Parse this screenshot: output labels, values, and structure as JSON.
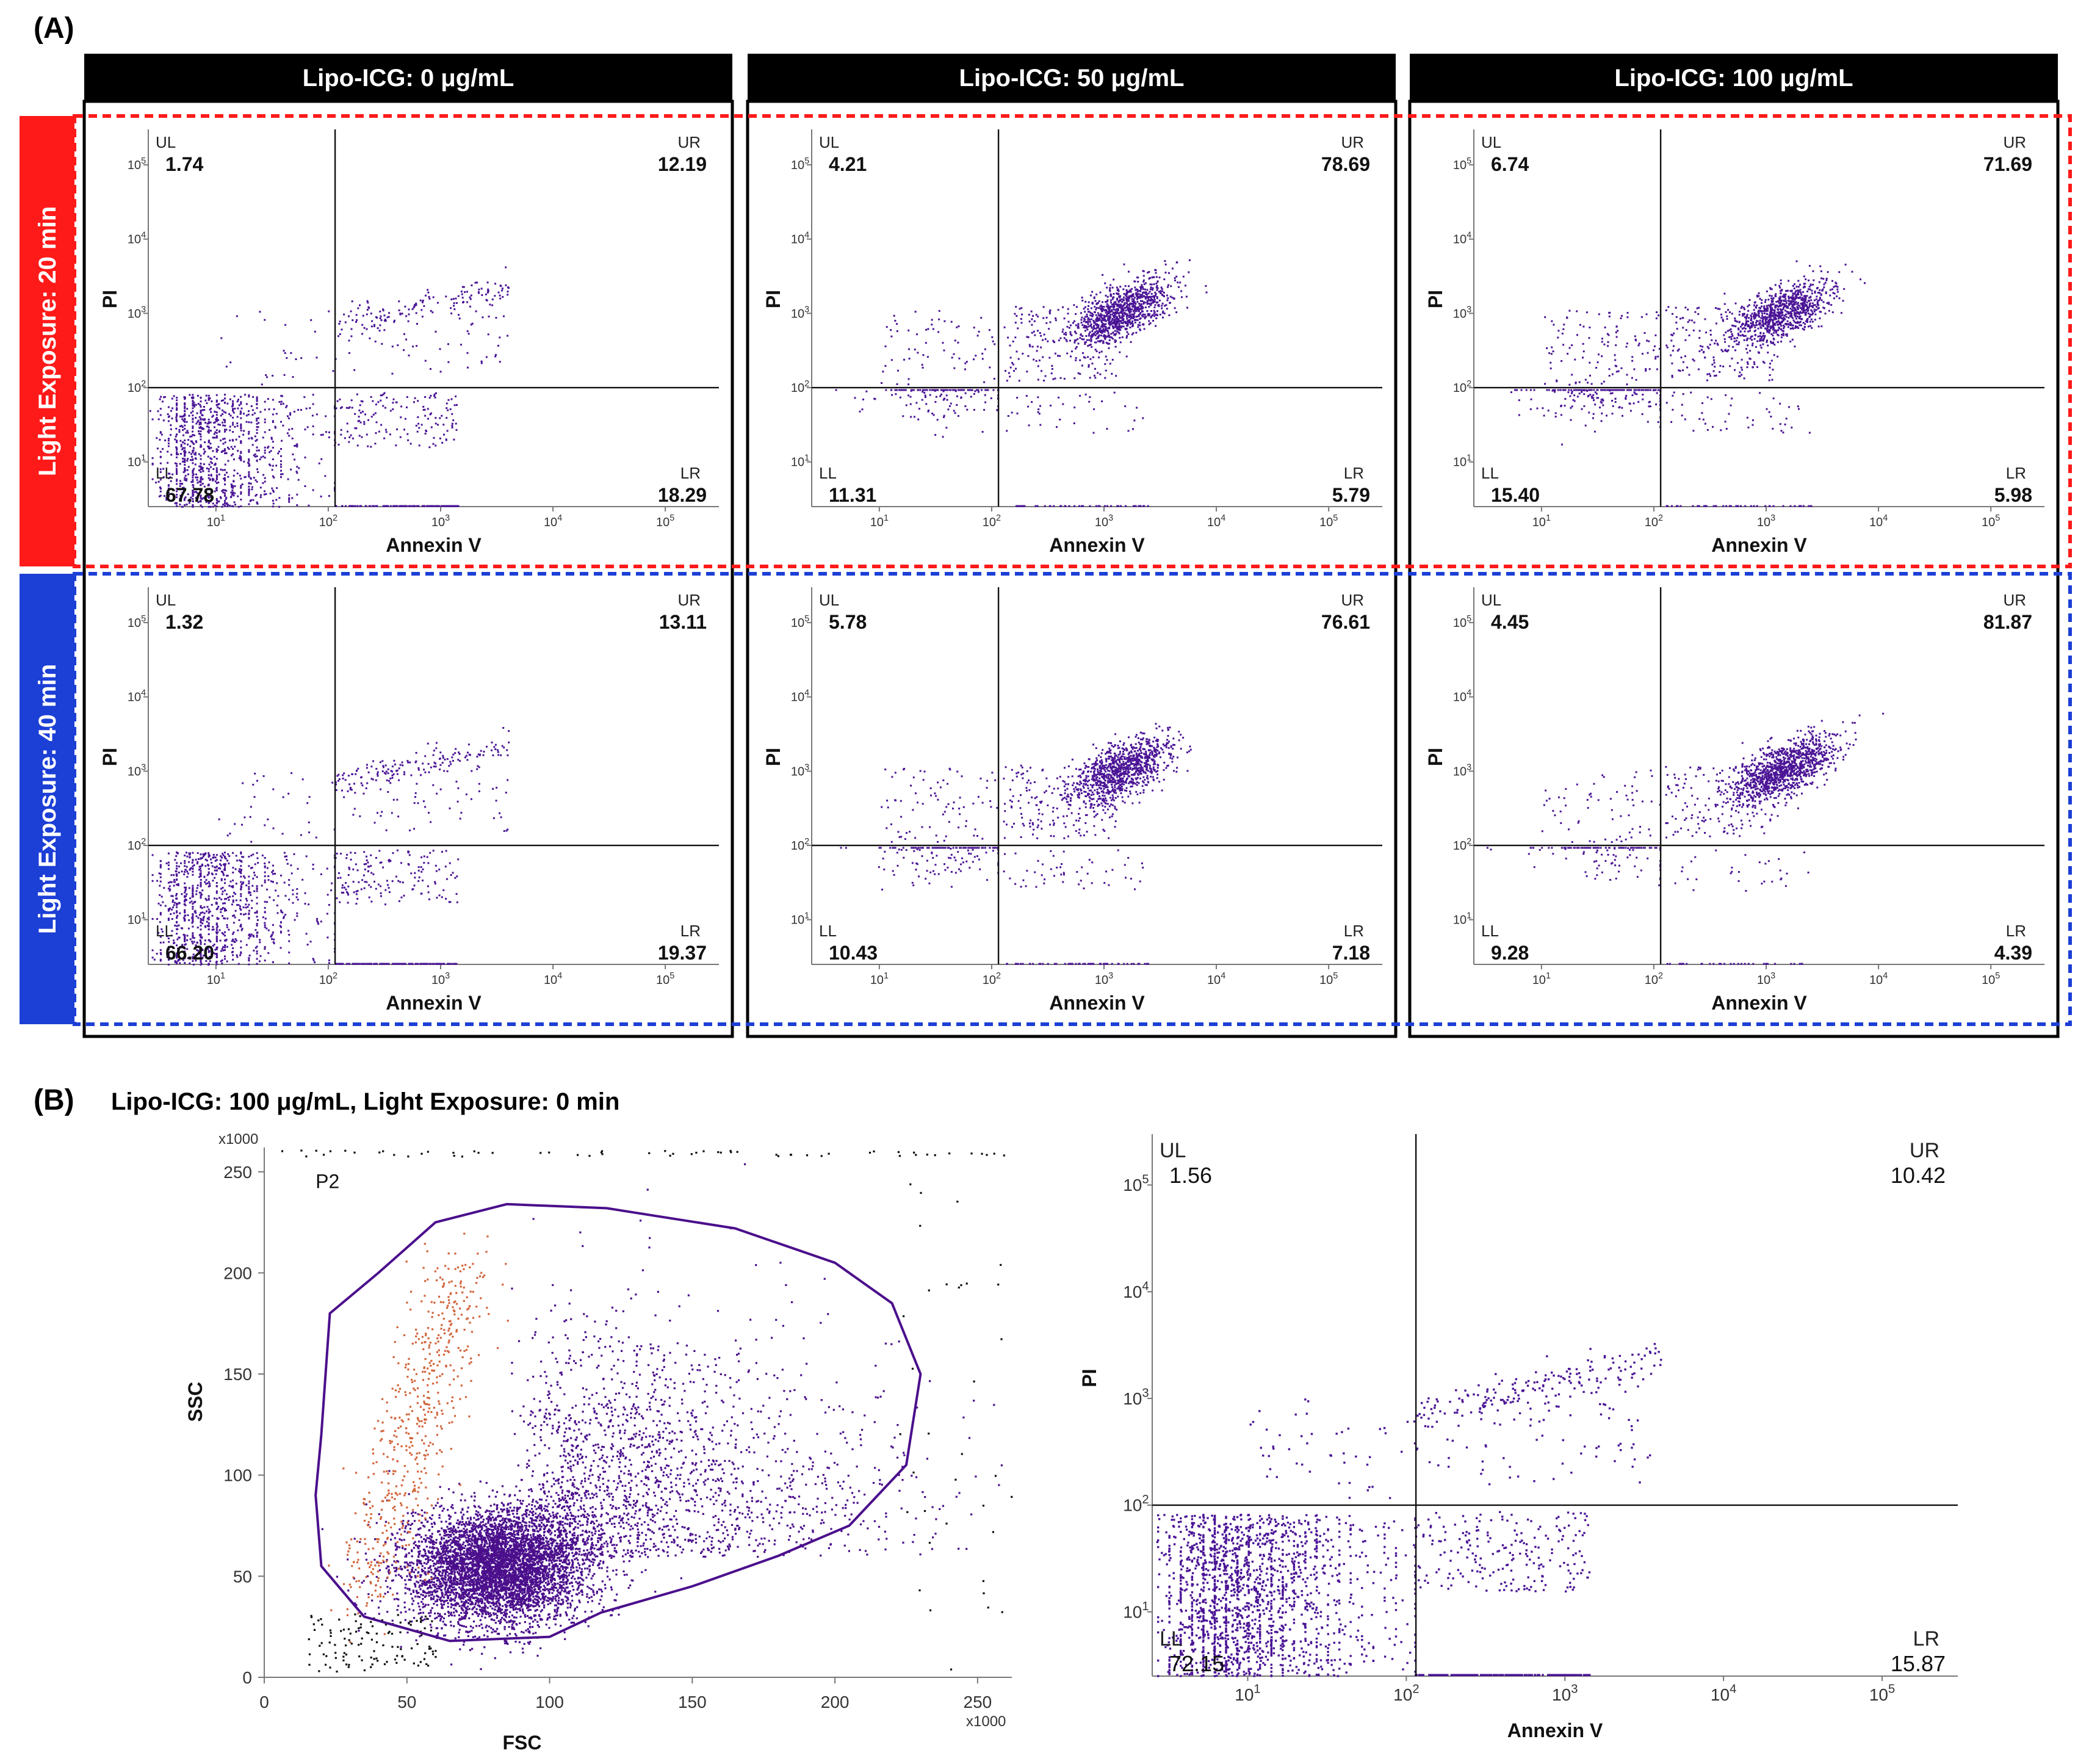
{
  "panel_a": {
    "label": "(A)",
    "column_headers": [
      "Lipo-ICG: 0 μg/mL",
      "Lipo-ICG: 50 μg/mL",
      "Lipo-ICG: 100 μg/mL"
    ],
    "row_headers": [
      "Light Exposure: 20 min",
      "Light Exposure: 40 min"
    ],
    "row_colors": [
      "#ff1a1a",
      "#1c3fd6"
    ],
    "xlabel": "Annexin V",
    "ylabel": "PI",
    "quadrant_names": {
      "ul": "UL",
      "ur": "UR",
      "ll": "LL",
      "lr": "LR"
    },
    "x_ticks": [
      [
        "10",
        "1"
      ],
      [
        "10",
        "2"
      ],
      [
        "10",
        "3"
      ],
      [
        "10",
        "4"
      ],
      [
        "10",
        "5"
      ]
    ],
    "y_ticks": [
      [
        "10",
        "1"
      ],
      [
        "10",
        "2"
      ],
      [
        "10",
        "3"
      ],
      [
        "10",
        "4"
      ],
      [
        "10",
        "5"
      ]
    ]
  },
  "panel_b": {
    "label": "(B)",
    "title": "Lipo-ICG: 100 μg/mL, Light Exposure: 0 min",
    "gate_label": "P2",
    "x_multiplier": "x1000",
    "y_multiplier": "x1000"
  },
  "chart_data": [
    {
      "type": "scatter",
      "panel": "A",
      "row": "Light Exposure: 20 min",
      "column": "Lipo-ICG: 0 μg/mL",
      "xlabel": "Annexin V",
      "ylabel": "PI",
      "x_scale": "log",
      "y_scale": "log",
      "xlim": [
        2.5,
        300000
      ],
      "ylim": [
        2.5,
        300000
      ],
      "quadrants": {
        "UL": "1.74",
        "UR": "12.19",
        "LL": "67.78",
        "LR": "18.29"
      }
    },
    {
      "type": "scatter",
      "panel": "A",
      "row": "Light Exposure: 20 min",
      "column": "Lipo-ICG: 50 μg/mL",
      "xlabel": "Annexin V",
      "ylabel": "PI",
      "x_scale": "log",
      "y_scale": "log",
      "xlim": [
        2.5,
        300000
      ],
      "ylim": [
        2.5,
        300000
      ],
      "quadrants": {
        "UL": "4.21",
        "UR": "78.69",
        "LL": "11.31",
        "LR": "5.79"
      }
    },
    {
      "type": "scatter",
      "panel": "A",
      "row": "Light Exposure: 20 min",
      "column": "Lipo-ICG: 100 μg/mL",
      "xlabel": "Annexin V",
      "ylabel": "PI",
      "x_scale": "log",
      "y_scale": "log",
      "xlim": [
        2.5,
        300000
      ],
      "ylim": [
        2.5,
        300000
      ],
      "quadrants": {
        "UL": "6.74",
        "UR": "71.69",
        "LL": "15.40",
        "LR": "5.98"
      }
    },
    {
      "type": "scatter",
      "panel": "A",
      "row": "Light Exposure: 40 min",
      "column": "Lipo-ICG: 0 μg/mL",
      "xlabel": "Annexin V",
      "ylabel": "PI",
      "x_scale": "log",
      "y_scale": "log",
      "xlim": [
        2.5,
        300000
      ],
      "ylim": [
        2.5,
        300000
      ],
      "quadrants": {
        "UL": "1.32",
        "UR": "13.11",
        "LL": "66.20",
        "LR": "19.37"
      }
    },
    {
      "type": "scatter",
      "panel": "A",
      "row": "Light Exposure: 40 min",
      "column": "Lipo-ICG: 50 μg/mL",
      "xlabel": "Annexin V",
      "ylabel": "PI",
      "x_scale": "log",
      "y_scale": "log",
      "xlim": [
        2.5,
        300000
      ],
      "ylim": [
        2.5,
        300000
      ],
      "quadrants": {
        "UL": "5.78",
        "UR": "76.61",
        "LL": "10.43",
        "LR": "7.18"
      }
    },
    {
      "type": "scatter",
      "panel": "A",
      "row": "Light Exposure: 40 min",
      "column": "Lipo-ICG: 100 μg/mL",
      "xlabel": "Annexin V",
      "ylabel": "PI",
      "x_scale": "log",
      "y_scale": "log",
      "xlim": [
        2.5,
        300000
      ],
      "ylim": [
        2.5,
        300000
      ],
      "quadrants": {
        "UL": "4.45",
        "UR": "81.87",
        "LL": "9.28",
        "LR": "4.39"
      }
    },
    {
      "type": "scatter",
      "panel": "B",
      "chart": "gate",
      "xlabel": "FSC",
      "ylabel": "SSC",
      "xlim": [
        0,
        262
      ],
      "ylim": [
        0,
        262
      ],
      "x_ticks": [
        "0",
        "50",
        "100",
        "150",
        "200",
        "250"
      ],
      "y_ticks": [
        "0",
        "50",
        "100",
        "150",
        "200",
        "250"
      ],
      "gate": "P2",
      "colors": {
        "in_gate": "#4b0f8c",
        "debris": "#d2653c",
        "outside": "#111111"
      }
    },
    {
      "type": "scatter",
      "panel": "B",
      "chart": "annexin",
      "xlabel": "Annexin V",
      "ylabel": "PI",
      "x_scale": "log",
      "y_scale": "log",
      "xlim": [
        2.5,
        300000
      ],
      "ylim": [
        2.5,
        300000
      ],
      "quadrants": {
        "UL": "1.56",
        "UR": "10.42",
        "LL": "72.15",
        "LR": "15.87"
      }
    }
  ]
}
